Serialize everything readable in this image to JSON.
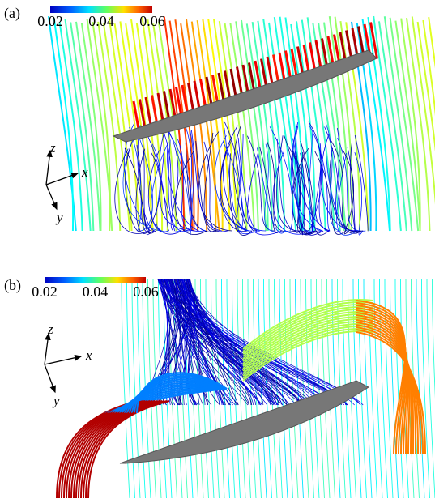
{
  "panels": [
    {
      "label": "(a)",
      "colorbar": {
        "range": [
          0.02,
          0.06
        ],
        "ticks": [
          0.02,
          0.04,
          0.06
        ]
      },
      "axes": {
        "z": "z",
        "x": "x",
        "y": "y"
      }
    },
    {
      "label": "(b)",
      "colorbar": {
        "range": [
          0.02,
          0.06
        ],
        "ticks": [
          0.02,
          0.04,
          0.06
        ]
      },
      "axes": {
        "z": "z",
        "x": "x",
        "y": "y"
      }
    }
  ]
}
